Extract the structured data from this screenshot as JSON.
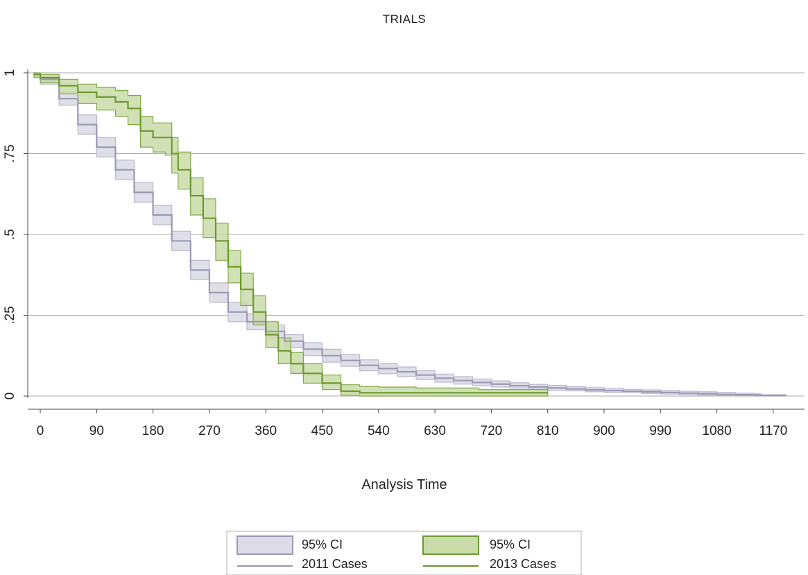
{
  "chart_data": {
    "type": "line",
    "title": "TRIALS",
    "xlabel": "Analysis Time",
    "ylabel": "",
    "xlim": [
      -20,
      1220
    ],
    "ylim": [
      0,
      1
    ],
    "x_ticks": [
      0,
      90,
      180,
      270,
      360,
      450,
      540,
      630,
      720,
      810,
      900,
      990,
      1080,
      1170
    ],
    "x_tick_labels": [
      "0",
      "90",
      "180",
      "270",
      "360",
      "450",
      "540",
      "630",
      "720",
      "810",
      "900",
      "990",
      "1080",
      "1170"
    ],
    "y_ticks": [
      0,
      0.25,
      0.5,
      0.75,
      1
    ],
    "y_tick_labels": [
      "0",
      ".25",
      ".5",
      ".75",
      "1"
    ],
    "grid": "horizontal",
    "legend_position": "bottom",
    "legend": [
      {
        "label": "95% CI",
        "kind": "band",
        "series": "2011 Cases"
      },
      {
        "label": "95% CI",
        "kind": "band",
        "series": "2013 Cases"
      },
      {
        "label": "2011 Cases",
        "kind": "line",
        "series": "2011 Cases"
      },
      {
        "label": "2013 Cases",
        "kind": "line",
        "series": "2013 Cases"
      }
    ],
    "series": [
      {
        "name": "2011 Cases",
        "color": "#9c98b4",
        "band_color": "#dcdbe6",
        "x": [
          -10,
          0,
          30,
          60,
          90,
          120,
          150,
          180,
          210,
          240,
          270,
          300,
          330,
          360,
          390,
          420,
          450,
          480,
          510,
          540,
          570,
          600,
          630,
          660,
          690,
          720,
          750,
          780,
          810,
          840,
          870,
          900,
          930,
          960,
          990,
          1020,
          1050,
          1080,
          1110,
          1140,
          1150,
          1190
        ],
        "y": [
          0.995,
          0.98,
          0.92,
          0.84,
          0.77,
          0.7,
          0.63,
          0.56,
          0.48,
          0.39,
          0.32,
          0.26,
          0.23,
          0.2,
          0.17,
          0.145,
          0.125,
          0.11,
          0.095,
          0.085,
          0.075,
          0.065,
          0.055,
          0.048,
          0.042,
          0.037,
          0.032,
          0.028,
          0.025,
          0.022,
          0.019,
          0.017,
          0.015,
          0.013,
          0.011,
          0.009,
          0.007,
          0.005,
          0.004,
          0.003,
          0.002,
          0.0
        ],
        "lower": [
          0.985,
          0.965,
          0.9,
          0.81,
          0.74,
          0.67,
          0.6,
          0.53,
          0.45,
          0.36,
          0.29,
          0.23,
          0.205,
          0.18,
          0.15,
          0.125,
          0.105,
          0.092,
          0.078,
          0.069,
          0.06,
          0.051,
          0.043,
          0.037,
          0.032,
          0.028,
          0.024,
          0.021,
          0.018,
          0.016,
          0.013,
          0.011,
          0.01,
          0.008,
          0.006,
          0.004,
          0.003,
          0.001,
          0.001,
          0.0,
          0.0,
          0.0
        ],
        "upper": [
          1.0,
          0.99,
          0.94,
          0.87,
          0.8,
          0.73,
          0.66,
          0.59,
          0.51,
          0.42,
          0.35,
          0.29,
          0.255,
          0.22,
          0.19,
          0.165,
          0.145,
          0.128,
          0.112,
          0.101,
          0.09,
          0.079,
          0.068,
          0.06,
          0.053,
          0.047,
          0.041,
          0.036,
          0.033,
          0.029,
          0.026,
          0.024,
          0.021,
          0.019,
          0.017,
          0.015,
          0.013,
          0.011,
          0.009,
          0.007,
          0.004,
          0.0
        ]
      },
      {
        "name": "2013 Cases",
        "color": "#6b9a2e",
        "band_color": "#c9dba8",
        "x": [
          -10,
          0,
          30,
          60,
          90,
          120,
          140,
          160,
          180,
          200,
          210,
          220,
          240,
          260,
          280,
          300,
          320,
          340,
          360,
          380,
          400,
          420,
          450,
          480,
          510,
          540,
          600,
          700,
          810
        ],
        "y": [
          0.995,
          0.985,
          0.96,
          0.94,
          0.925,
          0.91,
          0.89,
          0.82,
          0.8,
          0.8,
          0.75,
          0.7,
          0.62,
          0.55,
          0.48,
          0.4,
          0.33,
          0.26,
          0.19,
          0.14,
          0.1,
          0.07,
          0.04,
          0.015,
          0.01,
          0.01,
          0.01,
          0.01,
          0.01
        ],
        "lower": [
          0.985,
          0.97,
          0.935,
          0.905,
          0.885,
          0.865,
          0.84,
          0.77,
          0.755,
          0.745,
          0.69,
          0.64,
          0.56,
          0.49,
          0.42,
          0.35,
          0.28,
          0.22,
          0.15,
          0.1,
          0.07,
          0.04,
          0.02,
          0.003,
          0.0,
          0.0,
          0.0,
          0.0,
          0.0
        ],
        "upper": [
          1.0,
          0.995,
          0.98,
          0.965,
          0.955,
          0.945,
          0.93,
          0.865,
          0.845,
          0.845,
          0.8,
          0.755,
          0.675,
          0.61,
          0.535,
          0.45,
          0.38,
          0.31,
          0.23,
          0.18,
          0.135,
          0.1,
          0.065,
          0.035,
          0.03,
          0.028,
          0.025,
          0.02,
          0.015
        ]
      }
    ]
  }
}
